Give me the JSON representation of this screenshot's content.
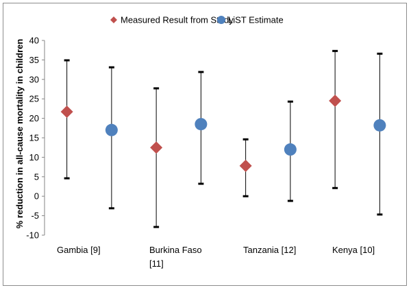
{
  "chart_data": {
    "type": "scatter",
    "title": "",
    "xlabel": "",
    "ylabel": "% reduction in all-cause mortality in children",
    "ylim": [
      -10,
      40
    ],
    "yticks": [
      -10,
      -5,
      0,
      5,
      10,
      15,
      20,
      25,
      30,
      35,
      40
    ],
    "grid": false,
    "legend_position": "top",
    "categories": [
      [
        "Gambia [9]"
      ],
      [
        "Burkina Faso",
        "[11]"
      ],
      [
        "Tanzania [12]"
      ],
      [
        "Kenya [10]"
      ]
    ],
    "series": [
      {
        "name": "Measured Result from Study",
        "marker": "diamond",
        "color": "#c0504d",
        "values": [
          21.7,
          12.5,
          7.8,
          24.5
        ],
        "lower": [
          4.6,
          -7.9,
          0,
          2.1
        ],
        "upper": [
          34.9,
          27.7,
          14.6,
          37.3
        ]
      },
      {
        "name": "LiST Estimate",
        "marker": "circle",
        "color": "#4f81bd",
        "values": [
          17.0,
          18.5,
          12.0,
          18.2
        ],
        "lower": [
          -3.1,
          3.2,
          -1.2,
          -4.7
        ],
        "upper": [
          33.1,
          31.9,
          24.3,
          36.6
        ]
      }
    ]
  }
}
